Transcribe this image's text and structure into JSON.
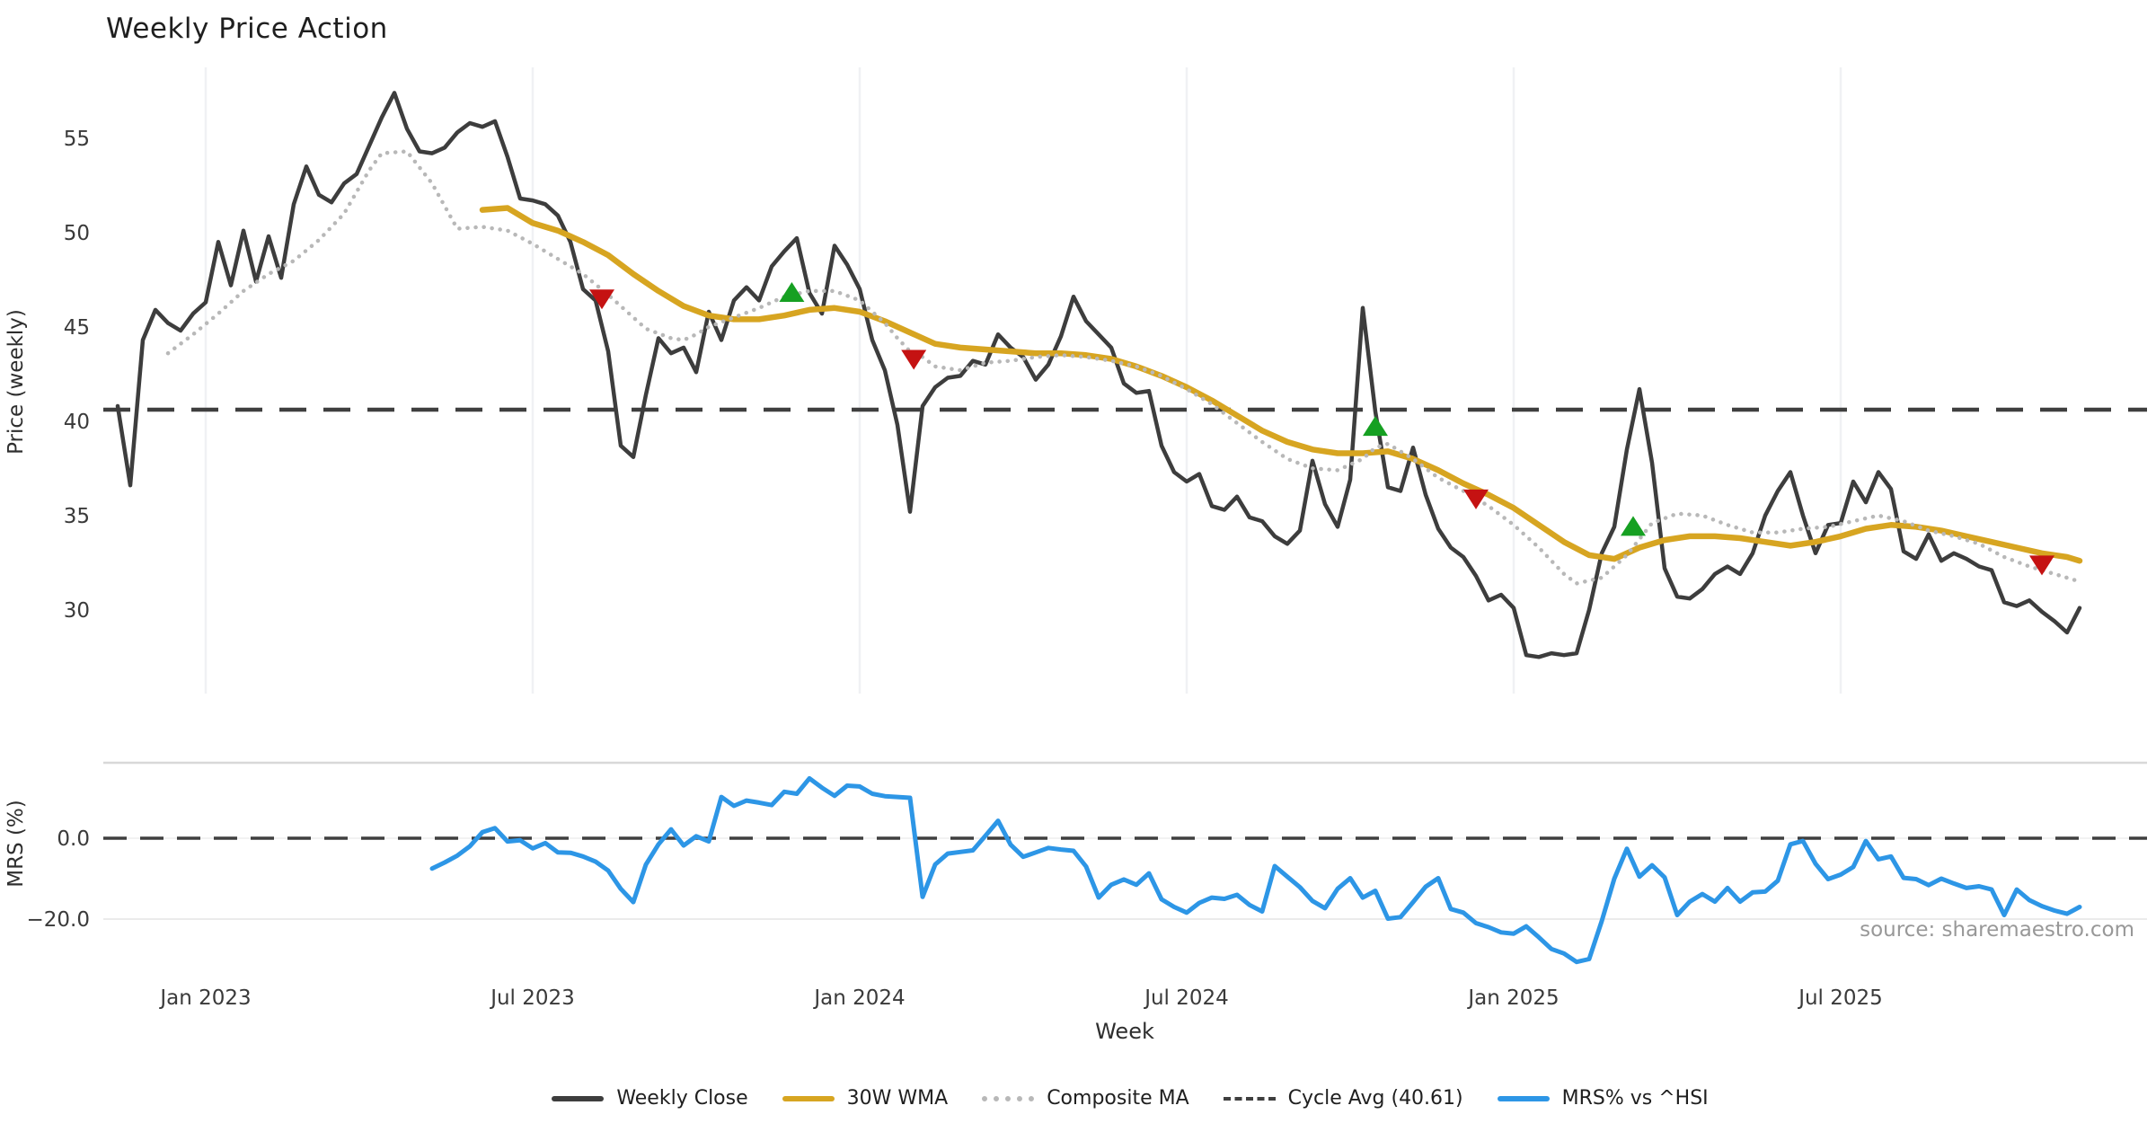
{
  "title": "Weekly Price Action",
  "source_text": "source: sharemaestro.com",
  "colors": {
    "close": "#3d3d3d",
    "wma": "#d7a521",
    "composite": "#b8b8b8",
    "cycle": "#3f3f3f",
    "mrs": "#2d96e6",
    "sell_marker": "#c51212",
    "buy_marker": "#16a022",
    "gridline": "#f0f1f4",
    "panel_spine": "#d8d8d8",
    "minor_grid": "#ebebeb",
    "tick_text": "#3a3a3a"
  },
  "legend": {
    "items": [
      {
        "label": "Weekly Close",
        "style": "solid",
        "color": "#3d3d3d"
      },
      {
        "label": "30W WMA",
        "style": "solid",
        "color": "#d7a521"
      },
      {
        "label": "Composite MA",
        "style": "dotted",
        "color": "#b8b8b8"
      },
      {
        "label": "Cycle Avg (40.61)",
        "style": "dashed",
        "color": "#3f3f3f"
      },
      {
        "label": "MRS% vs ^HSI",
        "style": "solid",
        "color": "#2d96e6"
      }
    ]
  },
  "chart_data": [
    {
      "id": "price_panel",
      "type": "line",
      "title": "Weekly Price Action",
      "ylabel": "Price (weekly)",
      "xlabel": "Week",
      "grid": "vertical-6month",
      "ylim": [
        26.5,
        59.0
      ],
      "yticks": [
        55,
        50,
        45,
        40,
        35,
        30
      ],
      "x_ticks": [
        {
          "label": "Jan 2023",
          "week": 7
        },
        {
          "label": "Jul 2023",
          "week": 33
        },
        {
          "label": "Jan 2024",
          "week": 59
        },
        {
          "label": "Jul 2024",
          "week": 85
        },
        {
          "label": "Jan 2025",
          "week": 111
        },
        {
          "label": "Jul 2025",
          "week": 137
        }
      ],
      "cycle_avg": 40.61,
      "series": [
        {
          "name": "Weekly Close",
          "style": "solid",
          "color_key": "close",
          "start_week": 0,
          "values": [
            40.8,
            36.6,
            44.3,
            45.9,
            45.2,
            44.8,
            45.7,
            46.3,
            49.5,
            47.2,
            50.1,
            47.4,
            49.8,
            47.6,
            51.5,
            53.5,
            52.0,
            51.6,
            52.6,
            53.1,
            54.6,
            56.1,
            57.4,
            55.5,
            54.3,
            54.2,
            54.5,
            55.3,
            55.8,
            55.6,
            55.9,
            54.0,
            51.8,
            51.7,
            51.5,
            50.9,
            49.5,
            47.0,
            46.4,
            43.7,
            38.7,
            38.1,
            41.4,
            44.4,
            43.6,
            43.9,
            42.6,
            45.8,
            44.3,
            46.4,
            47.1,
            46.4,
            48.2,
            49.0,
            49.7,
            46.8,
            45.7,
            49.3,
            48.3,
            47.0,
            44.3,
            42.7,
            39.8,
            35.2,
            40.8,
            41.8,
            42.3,
            42.4,
            43.2,
            43.0,
            44.6,
            43.9,
            43.4,
            42.2,
            43.0,
            44.5,
            46.6,
            45.3,
            44.6,
            43.9,
            42.0,
            41.5,
            41.6,
            38.7,
            37.3,
            36.8,
            37.2,
            35.5,
            35.3,
            36.0,
            34.9,
            34.7,
            33.9,
            33.5,
            34.2,
            37.9,
            35.6,
            34.4,
            36.9,
            46.0,
            40.5,
            36.5,
            36.3,
            38.6,
            36.1,
            34.3,
            33.3,
            32.8,
            31.8,
            30.5,
            30.8,
            30.1,
            27.6,
            27.5,
            27.7,
            27.6,
            27.7,
            30.0,
            33.0,
            34.4,
            38.5,
            41.7,
            37.8,
            32.2,
            30.7,
            30.6,
            31.1,
            31.9,
            32.3,
            31.9,
            33.0,
            35.0,
            36.3,
            37.3,
            35.0,
            33.0,
            34.5,
            34.6,
            36.8,
            35.7,
            37.3,
            36.4,
            33.1,
            32.7,
            34.0,
            32.6,
            33.0,
            32.7,
            32.3,
            32.1,
            30.4,
            30.2,
            30.5,
            29.9,
            29.4,
            28.8,
            30.1
          ]
        },
        {
          "name": "30W WMA",
          "style": "solid",
          "color_key": "wma",
          "points": [
            [
              29,
              51.2
            ],
            [
              31,
              51.3
            ],
            [
              33,
              50.5
            ],
            [
              35,
              50.1
            ],
            [
              37,
              49.5
            ],
            [
              39,
              48.8
            ],
            [
              41,
              47.8
            ],
            [
              43,
              46.9
            ],
            [
              45,
              46.1
            ],
            [
              47,
              45.6
            ],
            [
              49,
              45.4
            ],
            [
              51,
              45.4
            ],
            [
              53,
              45.6
            ],
            [
              55,
              45.9
            ],
            [
              57,
              46.0
            ],
            [
              59,
              45.8
            ],
            [
              61,
              45.3
            ],
            [
              63,
              44.7
            ],
            [
              65,
              44.1
            ],
            [
              67,
              43.9
            ],
            [
              69,
              43.8
            ],
            [
              71,
              43.7
            ],
            [
              73,
              43.6
            ],
            [
              75,
              43.6
            ],
            [
              77,
              43.5
            ],
            [
              79,
              43.3
            ],
            [
              81,
              42.9
            ],
            [
              83,
              42.4
            ],
            [
              85,
              41.8
            ],
            [
              87,
              41.1
            ],
            [
              89,
              40.3
            ],
            [
              91,
              39.5
            ],
            [
              93,
              38.9
            ],
            [
              95,
              38.5
            ],
            [
              97,
              38.3
            ],
            [
              99,
              38.3
            ],
            [
              101,
              38.4
            ],
            [
              103,
              38.0
            ],
            [
              105,
              37.4
            ],
            [
              107,
              36.7
            ],
            [
              109,
              36.1
            ],
            [
              111,
              35.4
            ],
            [
              113,
              34.5
            ],
            [
              115,
              33.6
            ],
            [
              117,
              32.9
            ],
            [
              119,
              32.7
            ],
            [
              121,
              33.3
            ],
            [
              123,
              33.7
            ],
            [
              125,
              33.9
            ],
            [
              127,
              33.9
            ],
            [
              129,
              33.8
            ],
            [
              131,
              33.6
            ],
            [
              133,
              33.4
            ],
            [
              135,
              33.6
            ],
            [
              137,
              33.9
            ],
            [
              139,
              34.3
            ],
            [
              141,
              34.5
            ],
            [
              143,
              34.4
            ],
            [
              145,
              34.2
            ],
            [
              147,
              33.9
            ],
            [
              149,
              33.6
            ],
            [
              151,
              33.3
            ],
            [
              153,
              33.0
            ],
            [
              155,
              32.8
            ],
            [
              156,
              32.6
            ]
          ]
        },
        {
          "name": "Composite MA",
          "style": "dotted",
          "color_key": "composite",
          "points": [
            [
              4,
              43.6
            ],
            [
              6,
              44.6
            ],
            [
              8,
              45.7
            ],
            [
              10,
              46.9
            ],
            [
              12,
              47.8
            ],
            [
              14,
              48.5
            ],
            [
              16,
              49.6
            ],
            [
              18,
              51.0
            ],
            [
              20,
              53.3
            ],
            [
              21,
              54.2
            ],
            [
              23,
              54.3
            ],
            [
              25,
              52.6
            ],
            [
              27,
              50.2
            ],
            [
              29,
              50.3
            ],
            [
              31,
              50.1
            ],
            [
              33,
              49.4
            ],
            [
              35,
              48.6
            ],
            [
              37,
              47.8
            ],
            [
              39,
              46.7
            ],
            [
              40,
              46.1
            ],
            [
              42,
              44.9
            ],
            [
              44,
              44.4
            ],
            [
              45,
              44.3
            ],
            [
              46,
              44.6
            ],
            [
              47,
              45.0
            ],
            [
              49,
              45.5
            ],
            [
              51,
              46.0
            ],
            [
              53,
              46.6
            ],
            [
              55,
              46.9
            ],
            [
              57,
              46.9
            ],
            [
              59,
              46.4
            ],
            [
              61,
              45.2
            ],
            [
              62,
              44.4
            ],
            [
              63,
              43.7
            ],
            [
              64,
              43.4
            ],
            [
              65,
              42.9
            ],
            [
              67,
              42.7
            ],
            [
              69,
              43.1
            ],
            [
              71,
              43.2
            ],
            [
              73,
              43.4
            ],
            [
              75,
              43.5
            ],
            [
              77,
              43.4
            ],
            [
              79,
              43.2
            ],
            [
              81,
              42.9
            ],
            [
              83,
              42.4
            ],
            [
              85,
              41.7
            ],
            [
              87,
              40.9
            ],
            [
              89,
              39.9
            ],
            [
              91,
              38.9
            ],
            [
              93,
              38.0
            ],
            [
              95,
              37.5
            ],
            [
              97,
              37.4
            ],
            [
              99,
              38.0
            ],
            [
              100,
              38.6
            ],
            [
              101,
              38.8
            ],
            [
              103,
              38.0
            ],
            [
              105,
              37.0
            ],
            [
              107,
              36.3
            ],
            [
              109,
              35.5
            ],
            [
              111,
              34.5
            ],
            [
              113,
              33.3
            ],
            [
              115,
              31.9
            ],
            [
              116,
              31.4
            ],
            [
              118,
              31.7
            ],
            [
              120,
              32.9
            ],
            [
              122,
              34.6
            ],
            [
              124,
              35.1
            ],
            [
              126,
              35.0
            ],
            [
              128,
              34.5
            ],
            [
              130,
              34.1
            ],
            [
              132,
              34.1
            ],
            [
              134,
              34.3
            ],
            [
              136,
              34.4
            ],
            [
              138,
              34.7
            ],
            [
              140,
              35.0
            ],
            [
              142,
              34.7
            ],
            [
              144,
              34.2
            ],
            [
              146,
              33.9
            ],
            [
              148,
              33.5
            ],
            [
              150,
              32.8
            ],
            [
              152,
              32.3
            ],
            [
              154,
              31.9
            ],
            [
              156,
              31.5
            ]
          ]
        }
      ],
      "markers": {
        "sell": {
          "shape": "triangle-down",
          "color_key": "sell_marker",
          "points": [
            [
              38.5,
              46.5
            ],
            [
              63.3,
              43.3
            ],
            [
              108,
              35.9
            ],
            [
              153,
              32.4
            ]
          ]
        },
        "buy": {
          "shape": "triangle-up",
          "color_key": "buy_marker",
          "points": [
            [
              53.6,
              46.8
            ],
            [
              100,
              39.7
            ],
            [
              120.5,
              34.4
            ]
          ]
        }
      }
    },
    {
      "id": "mrs_panel",
      "type": "line",
      "ylabel": "MRS (%)",
      "ylim": [
        -34,
        19
      ],
      "yticks": [
        0.0,
        -20.0
      ],
      "ytick_labels": [
        "0.0",
        "−20.0"
      ],
      "zero_line": "dashed",
      "series": [
        {
          "name": "MRS% vs ^HSI",
          "style": "solid",
          "color_key": "mrs",
          "start_week": 25,
          "values": [
            -7.5,
            -6.0,
            -4.3,
            -2.0,
            1.5,
            2.5,
            -0.8,
            -0.5,
            -2.5,
            -1.2,
            -3.5,
            -3.6,
            -4.5,
            -5.8,
            -8.0,
            -12.5,
            -15.8,
            -6.5,
            -1.5,
            2.2,
            -1.8,
            0.5,
            -0.8,
            10.2,
            8.0,
            9.3,
            8.8,
            8.2,
            11.5,
            11.0,
            14.8,
            12.5,
            10.5,
            13.0,
            12.8,
            11.0,
            10.4,
            10.2,
            10.0,
            -14.5,
            -6.5,
            -3.8,
            -3.4,
            -3.0,
            0.6,
            4.3,
            -1.6,
            -4.6,
            -3.5,
            -2.4,
            -2.8,
            -3.1,
            -7.0,
            -14.7,
            -11.5,
            -10.2,
            -11.5,
            -8.7,
            -15.1,
            -17.0,
            -18.4,
            -16.0,
            -14.7,
            -15.0,
            -14.0,
            -16.5,
            -18.1,
            -6.9,
            -9.5,
            -12.1,
            -15.5,
            -17.3,
            -12.5,
            -9.9,
            -14.7,
            -13.0,
            -19.9,
            -19.5,
            -15.8,
            -12.0,
            -9.9,
            -17.5,
            -18.4,
            -21.0,
            -22.0,
            -23.3,
            -23.6,
            -21.8,
            -24.5,
            -27.4,
            -28.5,
            -30.6,
            -29.9,
            -20.5,
            -10.0,
            -2.6,
            -9.5,
            -6.7,
            -9.7,
            -19.0,
            -15.7,
            -13.8,
            -15.7,
            -12.3,
            -15.7,
            -13.4,
            -13.2,
            -10.5,
            -1.5,
            -0.7,
            -6.3,
            -10.1,
            -9.0,
            -7.1,
            -0.7,
            -5.2,
            -4.5,
            -9.8,
            -10.1,
            -11.6,
            -10.0,
            -11.2,
            -12.3,
            -11.9,
            -12.7,
            -19.0,
            -12.7,
            -15.3,
            -16.8,
            -17.9,
            -18.7,
            -17.0
          ]
        }
      ]
    }
  ]
}
